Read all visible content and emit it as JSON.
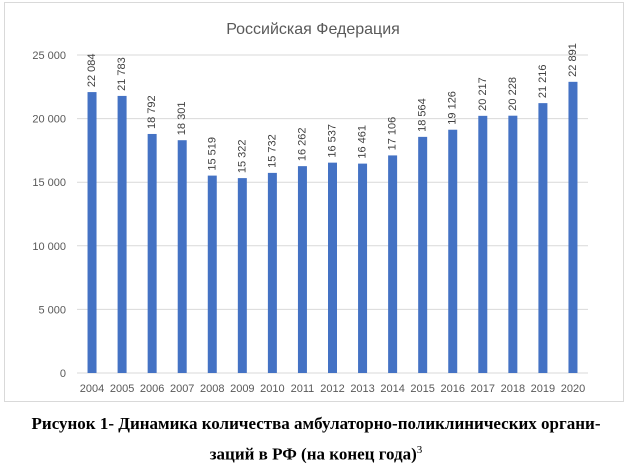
{
  "chart_data": {
    "type": "bar",
    "title": "Российская Федерация",
    "categories": [
      "2004",
      "2005",
      "2006",
      "2007",
      "2008",
      "2009",
      "2010",
      "2011",
      "2012",
      "2013",
      "2014",
      "2015",
      "2016",
      "2017",
      "2018",
      "2019",
      "2020"
    ],
    "values": [
      22084,
      21783,
      18792,
      18301,
      15519,
      15322,
      15732,
      16262,
      16537,
      16461,
      17106,
      18564,
      19126,
      20217,
      20228,
      21216,
      22891
    ],
    "data_labels": [
      "22 084",
      "21 783",
      "18 792",
      "18 301",
      "15 519",
      "15 322",
      "15 732",
      "16 262",
      "16 537",
      "16 461",
      "17 106",
      "18 564",
      "19 126",
      "20 217",
      "20 228",
      "21 216",
      "22 891"
    ],
    "yticks": [
      "0",
      "5 000",
      "10 000",
      "15 000",
      "20 000",
      "25 000"
    ],
    "ylim": [
      0,
      25000
    ],
    "grid": true,
    "bar_color": "#4472c4",
    "grid_color": "#d9d9d9"
  },
  "caption": {
    "line1": "Рисунок 1- Динамика количества амбулаторно-поликлинических органи-",
    "line2": "заций в РФ (на конец года)",
    "footnote_mark": "3"
  }
}
